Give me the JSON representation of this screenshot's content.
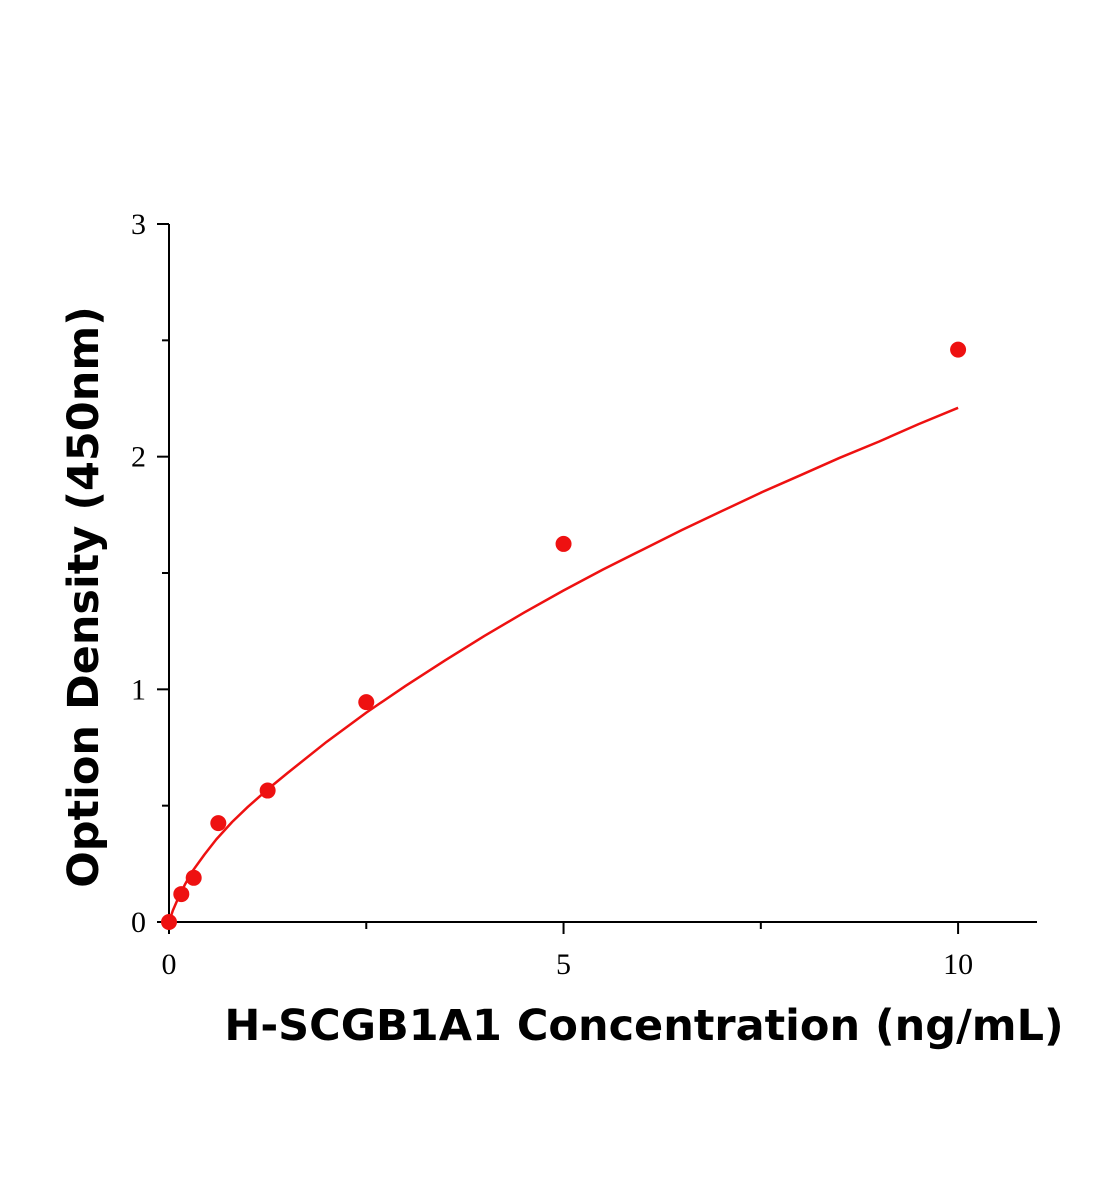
{
  "chart_data": {
    "type": "scatter",
    "title": "",
    "xlabel": "H-SCGB1A1 Concentration (ng/mL)",
    "ylabel": "Option Density (450nm)",
    "xlim": [
      0,
      11
    ],
    "ylim": [
      0,
      3
    ],
    "x_ticks": [
      0,
      5,
      10
    ],
    "y_ticks": [
      0,
      1,
      2,
      3
    ],
    "x_tick_labels": [
      "0",
      "5",
      "10"
    ],
    "y_tick_labels": [
      "0",
      "1",
      "2",
      "3"
    ],
    "x_minor_ticks": [
      2.5,
      7.5
    ],
    "y_minor_ticks": [
      0.5,
      1.5,
      2.5
    ],
    "grid": false,
    "series": [
      {
        "color": "#ee1111",
        "points": [
          {
            "x": 0,
            "y": 0.0
          },
          {
            "x": 0.156,
            "y": 0.12
          },
          {
            "x": 0.313,
            "y": 0.19
          },
          {
            "x": 0.625,
            "y": 0.425
          },
          {
            "x": 1.25,
            "y": 0.565
          },
          {
            "x": 2.5,
            "y": 0.945
          },
          {
            "x": 5,
            "y": 1.625
          },
          {
            "x": 10,
            "y": 2.46
          }
        ],
        "fit_curve": {
          "x": [
            0,
            0.05,
            0.1,
            0.2,
            0.3,
            0.45,
            0.6,
            0.8,
            1.0,
            1.25,
            1.5,
            2.0,
            2.5,
            3.0,
            3.5,
            4.0,
            4.5,
            5.0,
            5.5,
            6.0,
            6.5,
            7.0,
            7.5,
            8.0,
            8.5,
            9.0,
            9.5,
            10.0
          ],
          "y": [
            0.0,
            0.05,
            0.09,
            0.16,
            0.22,
            0.29,
            0.355,
            0.43,
            0.495,
            0.57,
            0.64,
            0.775,
            0.9,
            1.015,
            1.125,
            1.23,
            1.33,
            1.425,
            1.515,
            1.6,
            1.685,
            1.765,
            1.845,
            1.92,
            1.995,
            2.065,
            2.14,
            2.21
          ]
        }
      }
    ]
  }
}
